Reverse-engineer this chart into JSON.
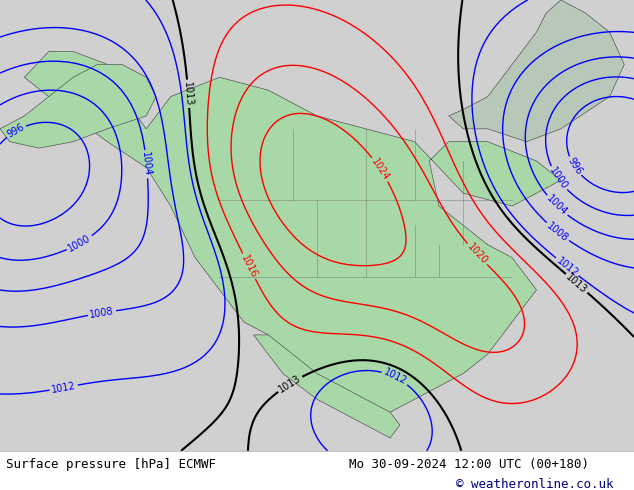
{
  "title_left": "Surface pressure [hPa] ECMWF",
  "title_right": "Mo 30-09-2024 12:00 UTC (00+180)",
  "copyright": "© weatheronline.co.uk",
  "bg_color": "#d0d0d0",
  "land_color": "#a8d8a8",
  "ocean_color": "#d8d8d8",
  "water_color": "#c8c8d8",
  "border_color": "#555555",
  "title_fontsize": 9,
  "copyright_fontsize": 9,
  "fig_width": 6.34,
  "fig_height": 4.9,
  "dpi": 100
}
